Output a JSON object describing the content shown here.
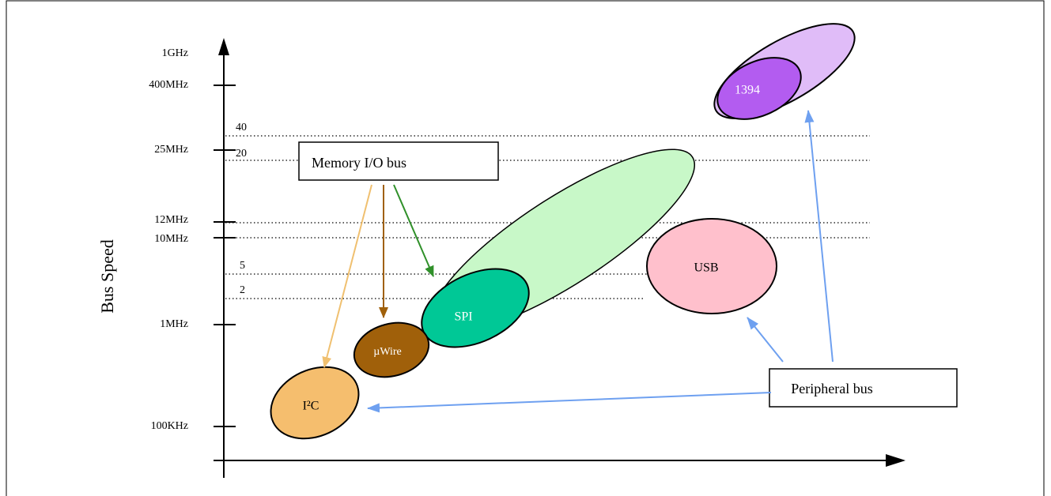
{
  "y_axis_label": "Bus Speed",
  "speed_ticks": [
    "1GHz",
    "400MHz",
    "25MHz",
    "12MHz",
    "10MHz",
    "1MHz",
    "100KHz"
  ],
  "line_labels": [
    "40",
    "20",
    "5",
    "2"
  ],
  "boxes": {
    "memory": "Memory I/O bus",
    "peripheral": "Peripheral bus"
  },
  "buses": {
    "firewire": "1394",
    "usb": "USB",
    "spi": "SPI",
    "microwire": "µWire",
    "i2c": "I²C"
  }
}
